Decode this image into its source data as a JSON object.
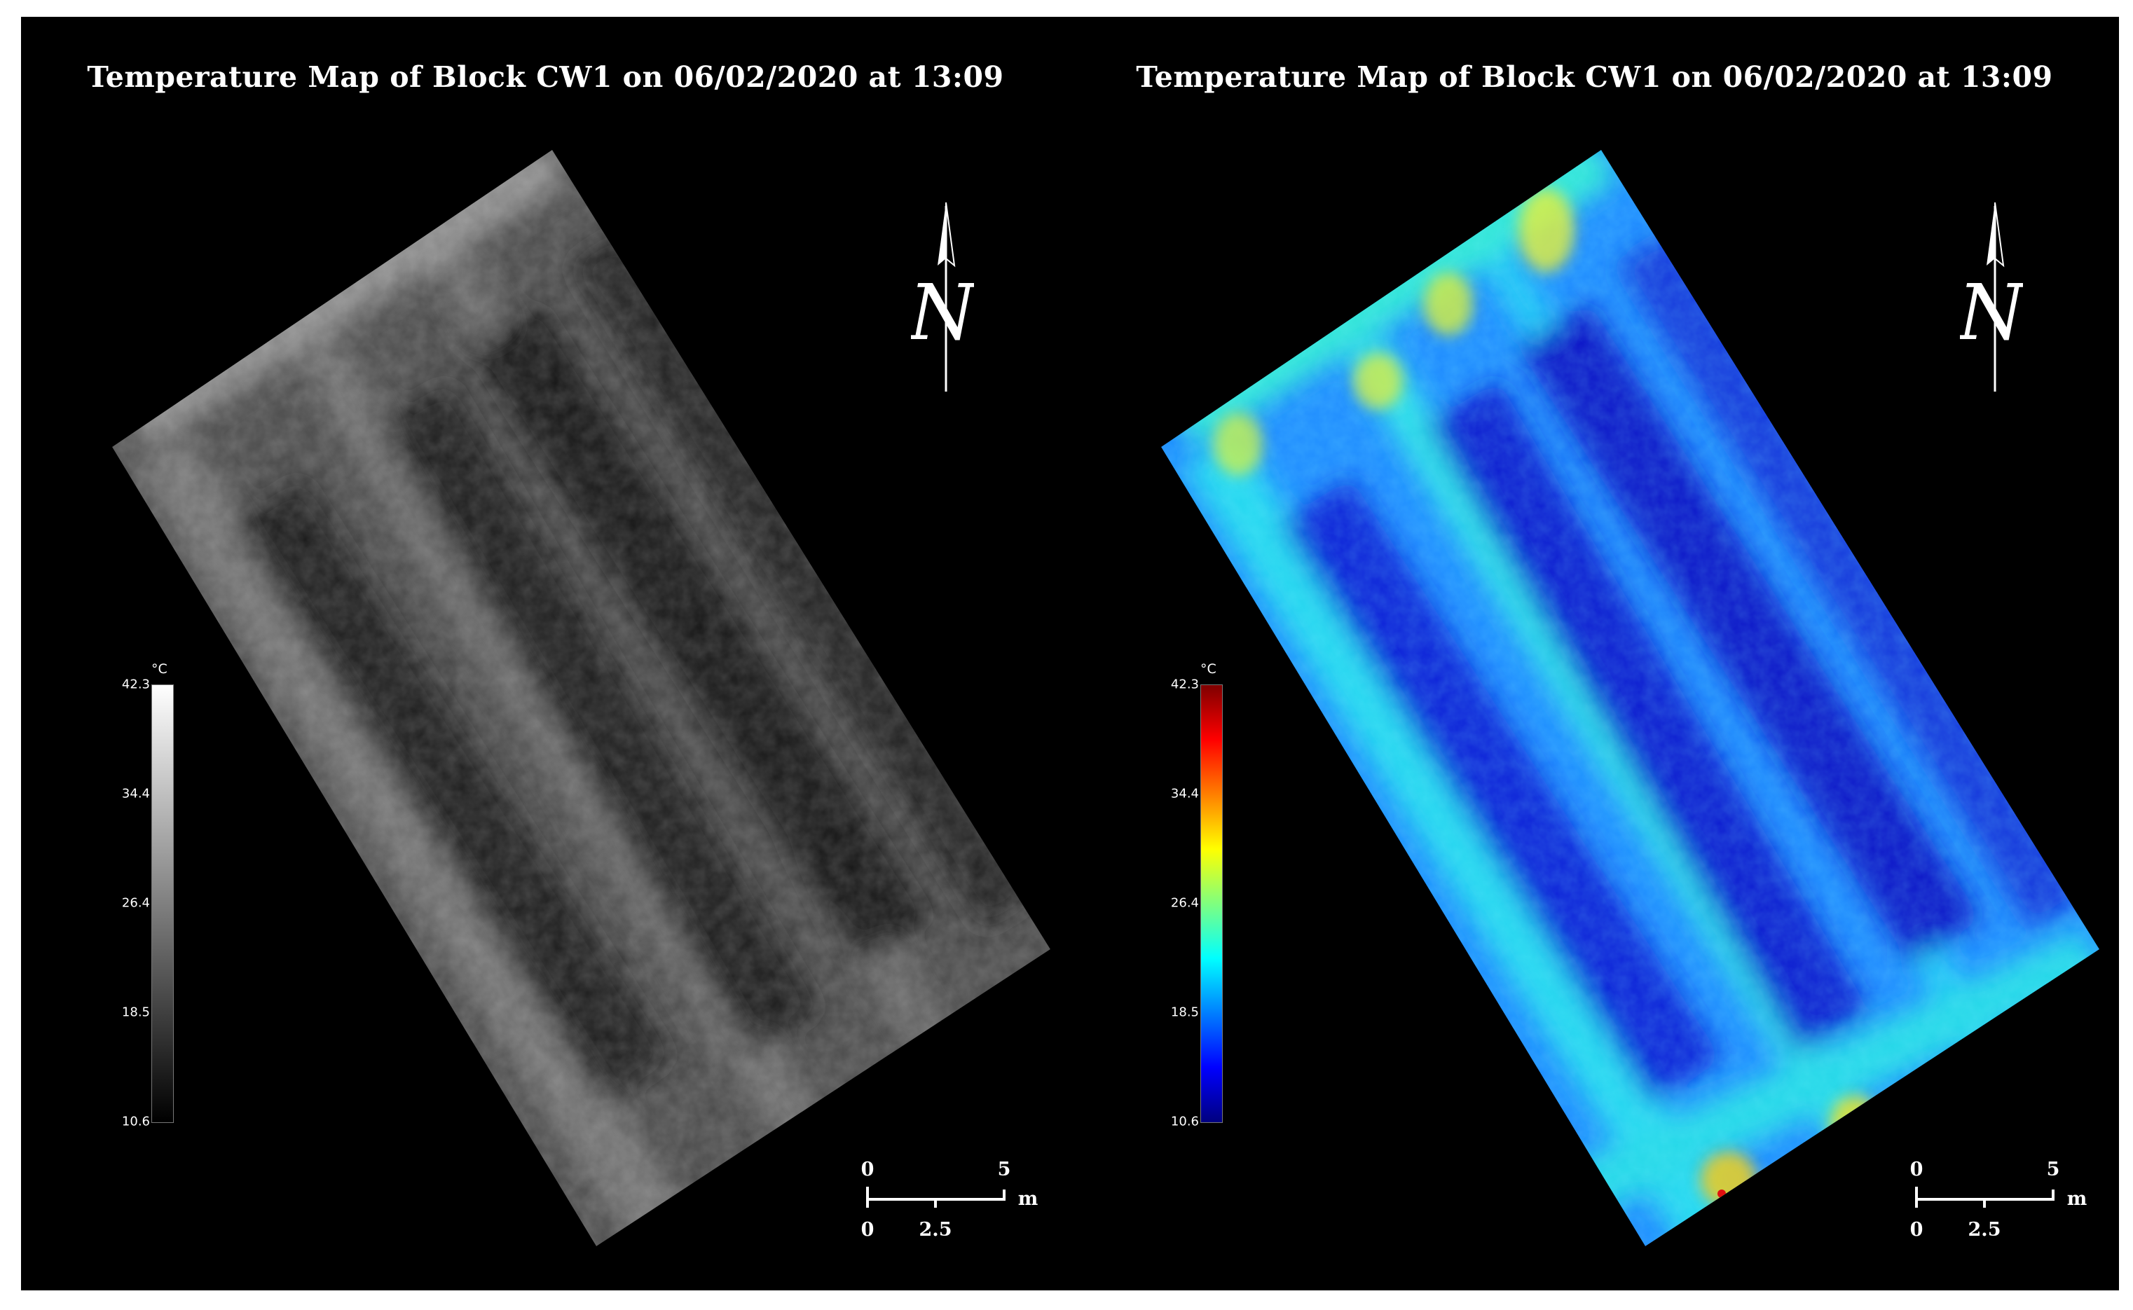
{
  "panels": [
    {
      "title": "Temperature Map of Block CW1 on 06/02/2020 at 13:09",
      "palette": "grayscale",
      "north_label": "N",
      "colorbar": {
        "unit": "°C",
        "ticks": [
          "42.3",
          "34.4",
          "26.4",
          "18.5",
          "10.6"
        ],
        "min": 10.6,
        "max": 42.3,
        "colors": [
          "#000000",
          "#ffffff"
        ]
      },
      "scalebar": {
        "top_labels": [
          "0",
          "5"
        ],
        "bottom_labels": [
          "0",
          "2.5"
        ],
        "unit": "m"
      }
    },
    {
      "title": "Temperature Map of Block CW1 on 06/02/2020 at 13:09",
      "palette": "jet",
      "north_label": "N",
      "colorbar": {
        "unit": "°C",
        "ticks": [
          "42.3",
          "34.4",
          "26.4",
          "18.5",
          "10.6"
        ],
        "min": 10.6,
        "max": 42.3,
        "colors": [
          "#00007f",
          "#0000ff",
          "#007fff",
          "#00ffff",
          "#7fff7f",
          "#ffff00",
          "#ff7f00",
          "#ff0000",
          "#7f0000"
        ]
      },
      "scalebar": {
        "top_labels": [
          "0",
          "5"
        ],
        "bottom_labels": [
          "0",
          "2.5"
        ],
        "unit": "m"
      }
    }
  ]
}
